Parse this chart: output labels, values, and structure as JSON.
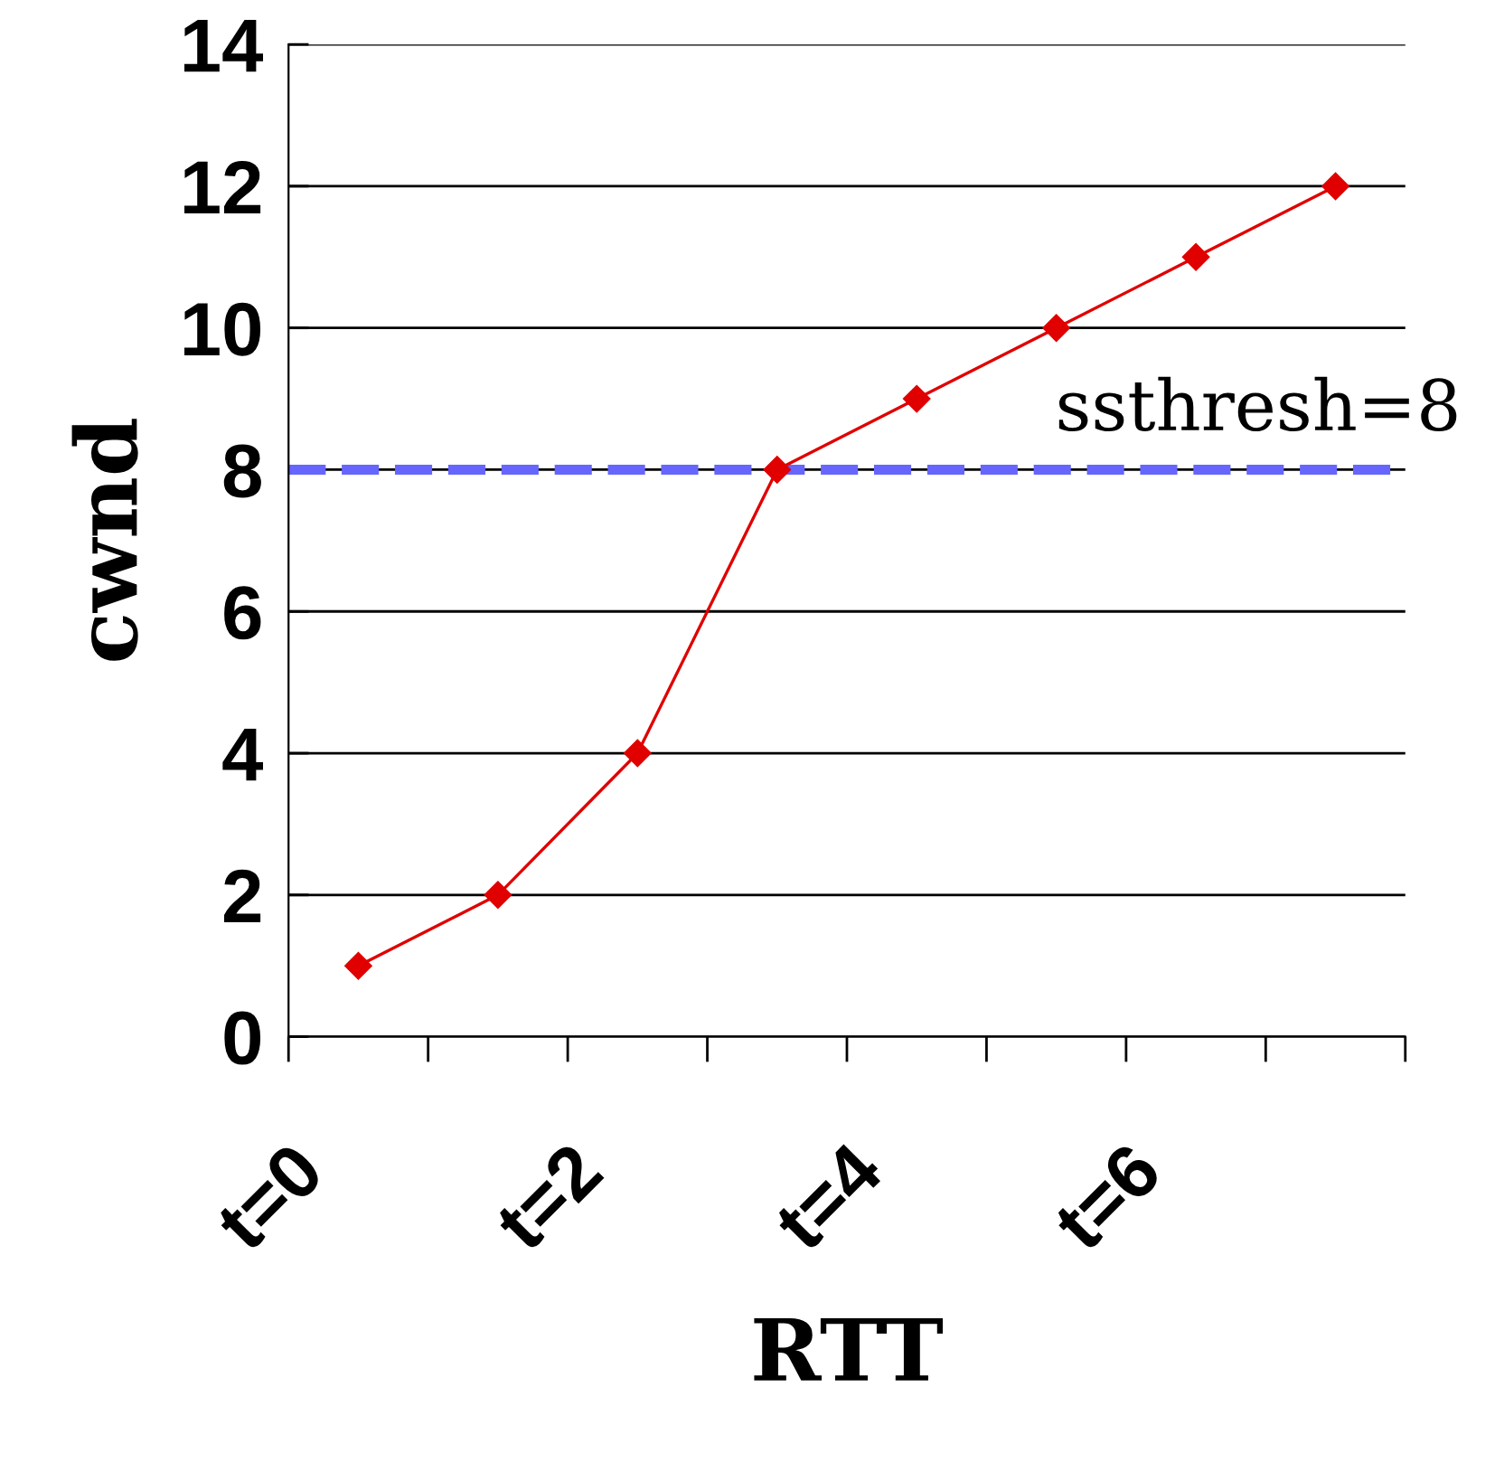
{
  "chart_data": {
    "type": "line",
    "xlabel": "RTT",
    "ylabel": "cwnd",
    "x": [
      0.5,
      1.5,
      2.5,
      3.5,
      4.5,
      5.5,
      6.5,
      7.5
    ],
    "series": [
      {
        "color": "#e00000",
        "values": [
          1,
          2,
          4,
          8,
          9,
          10,
          11,
          12
        ]
      }
    ],
    "marker": "diamond",
    "line_style": "solid",
    "xlim": [
      0,
      8
    ],
    "xticks": [
      {
        "value": 0,
        "label": "t=0"
      },
      {
        "value": 1,
        "label": null
      },
      {
        "value": 2,
        "label": "t=2"
      },
      {
        "value": 3,
        "label": null
      },
      {
        "value": 4,
        "label": "t=4"
      },
      {
        "value": 5,
        "label": null
      },
      {
        "value": 6,
        "label": "t=6"
      },
      {
        "value": 7,
        "label": null
      },
      {
        "value": 8,
        "label": null
      }
    ],
    "ylim": [
      0,
      14
    ],
    "yticks": [
      0,
      2,
      4,
      6,
      8,
      10,
      12,
      14
    ],
    "grid": "y",
    "ref_lines": [
      {
        "axis": "y",
        "value": 8,
        "label": "ssthresh=8",
        "color": "#6666ff",
        "line_style": "dashed"
      }
    ]
  }
}
